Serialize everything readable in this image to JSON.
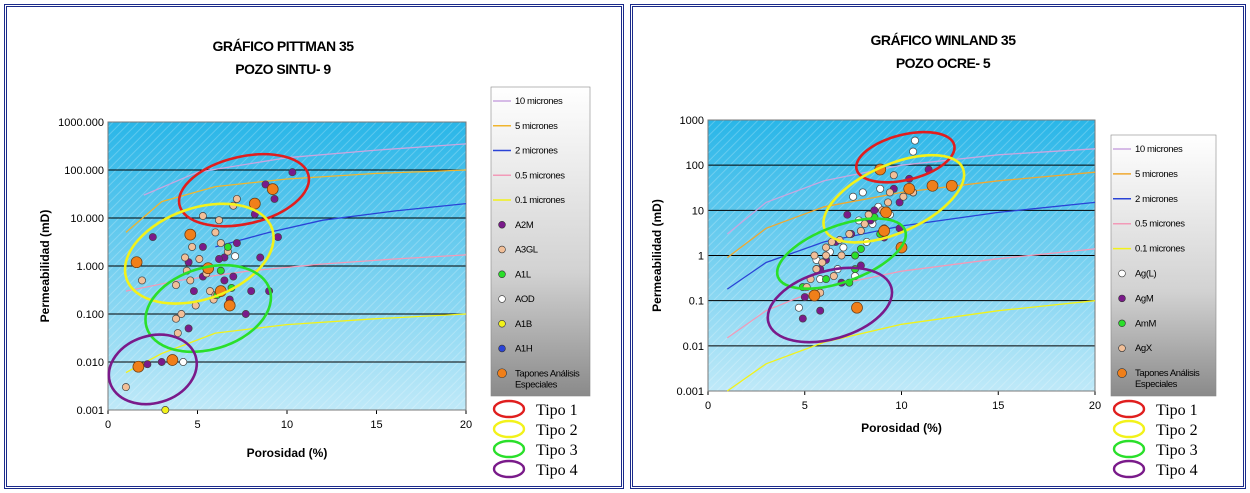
{
  "colors": {
    "plot_top": "#29b6e8",
    "plot_bottom": "#bfe9f8",
    "tipo1": "#e01e1e",
    "tipo2": "#f2f21a",
    "tipo3": "#2adf2a",
    "tipo4": "#7a1a8a"
  },
  "chart_data": [
    {
      "type": "scatter",
      "title": "GRÁFICO PITTMAN 35",
      "subtitle": "POZO SINTU- 9",
      "xlabel": "Porosidad (%)",
      "ylabel": "Permeabilidad (mD)",
      "xlim": [
        0,
        20
      ],
      "ylim": [
        0.001,
        1000
      ],
      "yscale": "log",
      "xticks": [
        "0",
        "5",
        "10",
        "15",
        "20"
      ],
      "yticks": [
        "0.001",
        "0.010",
        "0.100",
        "1.000",
        "10.000",
        "100.000",
        "1000.000"
      ],
      "grid": true,
      "legend_position": "right",
      "curves": [
        {
          "name": "10 micrones",
          "color": "#c9a6e0",
          "points": [
            [
              2,
              30
            ],
            [
              5,
              90
            ],
            [
              10,
              180
            ],
            [
              15,
              260
            ],
            [
              20,
              350
            ]
          ]
        },
        {
          "name": "5 micrones",
          "color": "#f0b52e",
          "points": [
            [
              1,
              5
            ],
            [
              3,
              22
            ],
            [
              6,
              45
            ],
            [
              10,
              65
            ],
            [
              15,
              85
            ],
            [
              20,
              100
            ]
          ]
        },
        {
          "name": "2 micrones",
          "color": "#2a43d6",
          "points": [
            [
              6,
              2.5
            ],
            [
              9,
              5
            ],
            [
              12,
              9
            ],
            [
              16,
              14
            ],
            [
              20,
              20
            ]
          ]
        },
        {
          "name": "0.5 microns",
          "label": "0.5 micrones",
          "color": "#f29ab8",
          "points": [
            [
              1,
              0.3
            ],
            [
              4,
              0.5
            ],
            [
              8,
              0.8
            ],
            [
              12,
              1.1
            ],
            [
              16,
              1.4
            ],
            [
              20,
              1.7
            ]
          ]
        },
        {
          "name": "0.1 micrones",
          "color": "#f2f21a",
          "points": [
            [
              1,
              0.006
            ],
            [
              3,
              0.015
            ],
            [
              6,
              0.04
            ],
            [
              10,
              0.06
            ],
            [
              15,
              0.08
            ],
            [
              20,
              0.1
            ]
          ]
        }
      ],
      "series": [
        {
          "name": "A2M",
          "color": "#7a1a8a",
          "points": [
            [
              10.3,
              90
            ],
            [
              8.8,
              50
            ],
            [
              9.3,
              25
            ],
            [
              8.2,
              12
            ],
            [
              9.5,
              4
            ],
            [
              2.5,
              4
            ],
            [
              4.5,
              1.2
            ],
            [
              6.5,
              1.5
            ],
            [
              8.5,
              1.5
            ],
            [
              9,
              0.3
            ],
            [
              5.3,
              0.6
            ],
            [
              4.5,
              0.05
            ],
            [
              3,
              0.01
            ],
            [
              2.2,
              0.009
            ],
            [
              5.3,
              2.5
            ],
            [
              6.2,
              1.4
            ],
            [
              7,
              0.6
            ],
            [
              8,
              0.3
            ],
            [
              6.5,
              0.5
            ],
            [
              7.7,
              0.1
            ],
            [
              6.8,
              0.2
            ],
            [
              4.8,
              0.3
            ],
            [
              7.2,
              3
            ]
          ]
        },
        {
          "name": "A3GL",
          "color": "#f2bf98",
          "points": [
            [
              5.3,
              11
            ],
            [
              6.2,
              9
            ],
            [
              4.7,
              2.5
            ],
            [
              5.1,
              1.4
            ],
            [
              4.4,
              0.8
            ],
            [
              4.6,
              0.5
            ],
            [
              3.8,
              0.4
            ],
            [
              5.7,
              0.3
            ],
            [
              4.9,
              0.15
            ],
            [
              3.9,
              0.04
            ],
            [
              3.8,
              0.08
            ],
            [
              4.1,
              0.1
            ],
            [
              1.9,
              0.5
            ],
            [
              7.2,
              25
            ],
            [
              7,
              18
            ],
            [
              6,
              5
            ],
            [
              6.3,
              3
            ],
            [
              5.5,
              0.7
            ],
            [
              1,
              0.003
            ],
            [
              5.9,
              0.2
            ],
            [
              6.7,
              2
            ],
            [
              6,
              0.25
            ],
            [
              4.3,
              1.5
            ]
          ]
        },
        {
          "name": "A1L",
          "color": "#2adf2a",
          "points": [
            [
              6.7,
              2.5
            ],
            [
              6.9,
              0.35
            ],
            [
              6.3,
              0.8
            ],
            [
              6.1,
              0.25
            ]
          ]
        },
        {
          "name": "AOD",
          "color": "#ffffff",
          "points": [
            [
              7.1,
              1.6
            ],
            [
              4.2,
              0.01
            ]
          ]
        },
        {
          "name": "A1B",
          "color": "#f2f21a",
          "points": [
            [
              3.2,
              0.001
            ]
          ]
        },
        {
          "name": "A1H",
          "color": "#2a43d6",
          "points": []
        },
        {
          "name": "Tapones Análisis Especiales",
          "color": "#f07f1a",
          "points": [
            [
              9.2,
              40
            ],
            [
              8.2,
              20
            ],
            [
              4.6,
              4.5
            ],
            [
              1.6,
              1.2
            ],
            [
              5.6,
              0.9
            ],
            [
              6.3,
              0.3
            ],
            [
              6.8,
              0.15
            ],
            [
              1.7,
              0.008
            ],
            [
              3.6,
              0.011
            ]
          ]
        }
      ],
      "ellipses": [
        {
          "label": "Tipo 1",
          "cx": 7.6,
          "cy": 38,
          "rx": 3.7,
          "ry_decades": 0.7,
          "angle": -13
        },
        {
          "label": "Tipo 2",
          "cx": 5.1,
          "cy": 1.8,
          "rx": 4.3,
          "ry_decades": 0.95,
          "angle": -19
        },
        {
          "label": "Tipo 3",
          "cx": 5.6,
          "cy": 0.13,
          "rx": 3.6,
          "ry_decades": 0.85,
          "angle": -17
        },
        {
          "label": "Tipo 4",
          "cx": 2.5,
          "cy": 0.007,
          "rx": 2.5,
          "ry_decades": 0.7,
          "angle": -17
        }
      ]
    },
    {
      "type": "scatter",
      "title": "GRÁFICO WINLAND 35",
      "subtitle": "POZO OCRE- 5",
      "xlabel": "Porosidad (%)",
      "ylabel": "Permeabilidad (mD)",
      "xlim": [
        0,
        20
      ],
      "ylim": [
        0.001,
        1000
      ],
      "yscale": "log",
      "xticks": [
        "0",
        "5",
        "10",
        "15",
        "20"
      ],
      "yticks": [
        "0.001",
        "0.01",
        "0.1",
        "1",
        "10",
        "100",
        "1000"
      ],
      "grid": true,
      "legend_position": "right",
      "curves": [
        {
          "name": "10 micrones",
          "color": "#c9a6e0",
          "points": [
            [
              1,
              3
            ],
            [
              3,
              15
            ],
            [
              6,
              45
            ],
            [
              10,
              100
            ],
            [
              15,
              170
            ],
            [
              20,
              230
            ]
          ]
        },
        {
          "name": "5 micrones",
          "color": "#f0a830",
          "points": [
            [
              1,
              0.9
            ],
            [
              3,
              4
            ],
            [
              6,
              12
            ],
            [
              10,
              25
            ],
            [
              15,
              45
            ],
            [
              20,
              70
            ]
          ]
        },
        {
          "name": "2 micrones",
          "color": "#2a43d6",
          "points": [
            [
              1,
              0.18
            ],
            [
              3,
              0.7
            ],
            [
              6,
              2
            ],
            [
              10,
              4.5
            ],
            [
              15,
              9
            ],
            [
              20,
              15
            ]
          ]
        },
        {
          "name": "0.5 micrones",
          "color": "#f29ab8",
          "points": [
            [
              1,
              0.015
            ],
            [
              3,
              0.06
            ],
            [
              6,
              0.2
            ],
            [
              10,
              0.45
            ],
            [
              15,
              0.85
            ],
            [
              20,
              1.4
            ]
          ]
        },
        {
          "name": "0.1 micrones",
          "color": "#f2f21a",
          "points": [
            [
              1,
              0.001
            ],
            [
              3,
              0.004
            ],
            [
              6,
              0.012
            ],
            [
              10,
              0.03
            ],
            [
              15,
              0.06
            ],
            [
              20,
              0.1
            ]
          ]
        }
      ],
      "series": [
        {
          "name": "Ag(L)",
          "color": "#ffffff",
          "points": [
            [
              10.7,
              350
            ],
            [
              10.6,
              200
            ],
            [
              8.9,
              30
            ],
            [
              8,
              25
            ],
            [
              7.5,
              20
            ],
            [
              7.8,
              6
            ],
            [
              8.5,
              5
            ],
            [
              7,
              1.5
            ],
            [
              5.6,
              0.8
            ],
            [
              6.7,
              0.5
            ],
            [
              5.8,
              0.3
            ],
            [
              4.7,
              0.07
            ],
            [
              8.8,
              12
            ],
            [
              9.1,
              4
            ],
            [
              6.3,
              1.2
            ],
            [
              7.6,
              0.35
            ],
            [
              8.2,
              2
            ],
            [
              9.4,
              8
            ]
          ]
        },
        {
          "name": "AgM",
          "color": "#7a1a8a",
          "points": [
            [
              11.4,
              80
            ],
            [
              10.4,
              50
            ],
            [
              9.6,
              30
            ],
            [
              9.9,
              15
            ],
            [
              8.6,
              10
            ],
            [
              7.2,
              8
            ],
            [
              9.9,
              4
            ],
            [
              6.6,
              2
            ],
            [
              7.6,
              1
            ],
            [
              5.8,
              0.5
            ],
            [
              5,
              0.12
            ],
            [
              5.8,
              0.06
            ],
            [
              4.9,
              0.04
            ],
            [
              6.1,
              0.8
            ],
            [
              7.4,
              3
            ],
            [
              9.1,
              2.5
            ],
            [
              8.4,
              6
            ],
            [
              6.9,
              0.25
            ],
            [
              10.6,
              25
            ],
            [
              7.9,
              0.6
            ]
          ]
        },
        {
          "name": "AmM",
          "color": "#2adf2a",
          "points": [
            [
              8.6,
              7
            ],
            [
              8.9,
              3
            ],
            [
              7.6,
              1
            ],
            [
              7.6,
              0.5
            ],
            [
              6.1,
              0.3
            ],
            [
              5.6,
              0.5
            ],
            [
              4.9,
              0.2
            ],
            [
              7.9,
              1.4
            ],
            [
              7.3,
              0.25
            ]
          ]
        },
        {
          "name": "AgX",
          "color": "#f2bf98",
          "points": [
            [
              9.6,
              60
            ],
            [
              9.4,
              25
            ],
            [
              10.6,
              25
            ],
            [
              10.1,
              20
            ],
            [
              9,
              10
            ],
            [
              8.1,
              5
            ],
            [
              7.3,
              3
            ],
            [
              6.4,
              2
            ],
            [
              6.1,
              1.5
            ],
            [
              6.1,
              1
            ],
            [
              5.9,
              0.7
            ],
            [
              5.6,
              0.5
            ],
            [
              5.3,
              0.3
            ],
            [
              5.1,
              0.2
            ],
            [
              5.8,
              0.15
            ],
            [
              6.5,
              0.35
            ],
            [
              6.9,
              1
            ],
            [
              7.9,
              3.5
            ],
            [
              9.3,
              15
            ],
            [
              8.3,
              8
            ],
            [
              5.5,
              1
            ],
            [
              6.8,
              2.2
            ]
          ]
        },
        {
          "name": "Tapones Análisis Especiales",
          "color": "#f07f1a",
          "points": [
            [
              8.9,
              80
            ],
            [
              12.6,
              35
            ],
            [
              11.6,
              35
            ],
            [
              10.4,
              30
            ],
            [
              9.2,
              9
            ],
            [
              9.1,
              3.5
            ],
            [
              10,
              1.5
            ],
            [
              5.5,
              0.13
            ],
            [
              7.7,
              0.07
            ]
          ]
        }
      ],
      "ellipses": [
        {
          "label": "Tipo 1",
          "cx": 10.2,
          "cy": 150,
          "rx": 2.6,
          "ry_decades": 0.5,
          "angle": -14
        },
        {
          "label": "Tipo 2",
          "cx": 9.6,
          "cy": 18,
          "rx": 3.9,
          "ry_decades": 0.75,
          "angle": -24
        },
        {
          "label": "Tipo 3",
          "cx": 6.9,
          "cy": 1.1,
          "rx": 3.5,
          "ry_decades": 0.62,
          "angle": -20
        },
        {
          "label": "Tipo 4",
          "cx": 6.3,
          "cy": 0.08,
          "rx": 3.3,
          "ry_decades": 0.75,
          "angle": -16
        }
      ]
    }
  ]
}
